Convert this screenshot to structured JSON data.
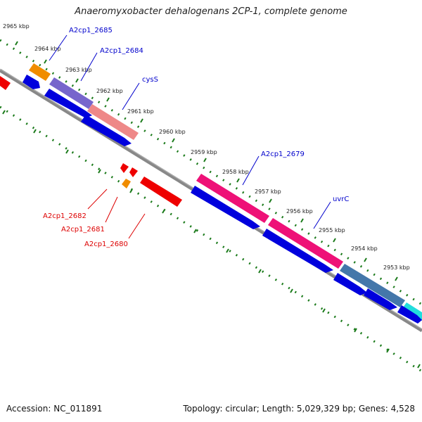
{
  "title": "Anaeromyxobacter dehalogenans 2CP-1, complete genome",
  "footer": {
    "accession": "Accession: NC_011891",
    "summary": "Topology: circular; Length: 5,029,329 bp; Genes: 4,528"
  },
  "colors": {
    "forward_cds": "#0000dd",
    "reverse_cds": "#ee0000",
    "label_forward": "#0000cc",
    "label_reverse": "#dd0000",
    "backbone": "#777777",
    "tick": "#1a7a1a",
    "ring_orange": "#f08c00",
    "ring_purple": "#7766cc",
    "ring_salmon": "#ee8888",
    "ring_magenta": "#ee1177",
    "ring_steel": "#4477aa",
    "ring_cyan": "#22dddd"
  },
  "kbp_ticks": [
    "2965 kbp",
    "2964 kbp",
    "2963 kbp",
    "2962 kbp",
    "2961 kbp",
    "2960 kbp",
    "2959 kbp",
    "2958 kbp",
    "2957 kbp",
    "2956 kbp",
    "2955 kbp",
    "2954 kbp",
    "2953 kbp"
  ],
  "gene_labels": [
    {
      "name": "A2cp1_2685",
      "strand": "forward"
    },
    {
      "name": "A2cp1_2684",
      "strand": "forward"
    },
    {
      "name": "cysS",
      "strand": "forward"
    },
    {
      "name": "A2cp1_2679",
      "strand": "forward"
    },
    {
      "name": "uvrC",
      "strand": "forward"
    },
    {
      "name": "A2cp1_2682",
      "strand": "reverse"
    },
    {
      "name": "A2cp1_2681",
      "strand": "reverse"
    },
    {
      "name": "A2cp1_2680",
      "strand": "reverse"
    }
  ]
}
